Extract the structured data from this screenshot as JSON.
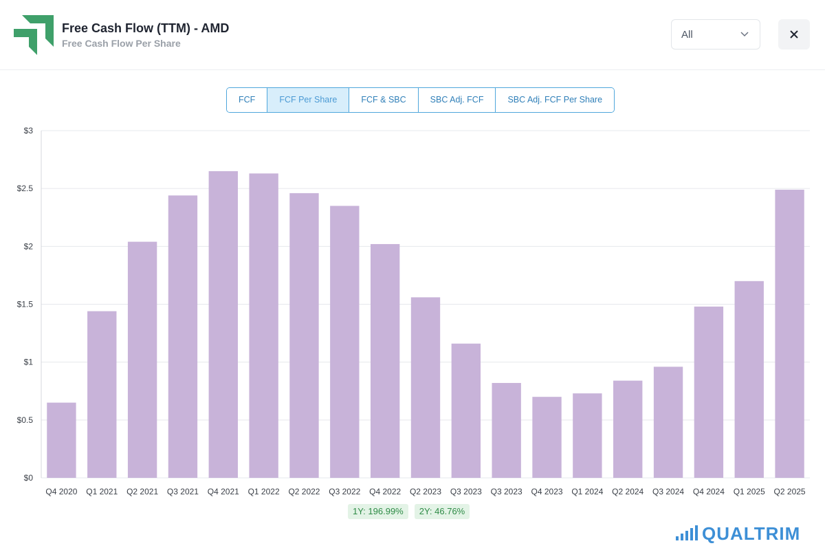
{
  "header": {
    "title": "Free Cash Flow (TTM) - AMD",
    "subtitle": "Free Cash Flow Per Share",
    "range_select": {
      "value": "All"
    },
    "close_label": "×"
  },
  "tabs": [
    {
      "label": "FCF",
      "active": false
    },
    {
      "label": "FCF Per Share",
      "active": true
    },
    {
      "label": "FCF & SBC",
      "active": false
    },
    {
      "label": "SBC Adj. FCF",
      "active": false
    },
    {
      "label": "SBC Adj. FCF Per Share",
      "active": false
    }
  ],
  "badges": {
    "one_year": "1Y: 196.99%",
    "two_year": "2Y: 46.76%"
  },
  "brand": {
    "name": "QUALTRIM",
    "color": "#3d8fd6"
  },
  "colors": {
    "bar": "#c8b3d9",
    "gridline": "#e6e8ec",
    "accent": "#4ea6dc",
    "logo": "#3fa06a"
  },
  "chart_data": {
    "type": "bar",
    "categories": [
      "Q4 2020",
      "Q1 2021",
      "Q2 2021",
      "Q3 2021",
      "Q4 2021",
      "Q1 2022",
      "Q2 2022",
      "Q3 2022",
      "Q4 2022",
      "Q2 2023",
      "Q3 2023",
      "Q3 2023",
      "Q4 2023",
      "Q1 2024",
      "Q2 2024",
      "Q3 2024",
      "Q4 2024",
      "Q1 2025",
      "Q2 2025"
    ],
    "values": [
      0.65,
      1.44,
      2.04,
      2.44,
      2.65,
      2.63,
      2.46,
      2.35,
      2.02,
      1.56,
      1.16,
      0.82,
      0.7,
      0.73,
      0.84,
      0.96,
      1.48,
      1.7,
      2.49
    ],
    "yticks": [
      "$0",
      "$0.5",
      "$1",
      "$1.5",
      "$2",
      "$2.5",
      "$3"
    ],
    "ylim": [
      0,
      3
    ],
    "grid": true,
    "legend": "none"
  }
}
